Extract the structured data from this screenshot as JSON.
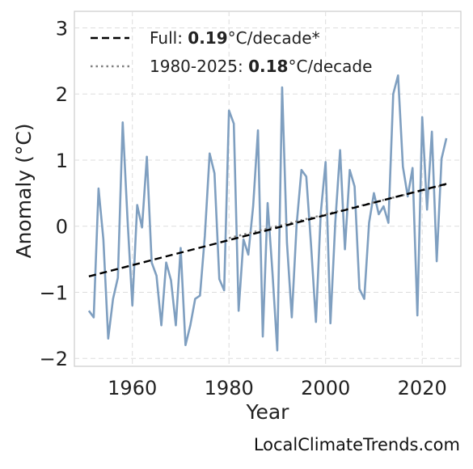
{
  "chart_data": {
    "type": "line",
    "xlabel": "Year",
    "ylabel": "Anomaly (°C)",
    "xlim": [
      1948,
      2028
    ],
    "ylim": [
      -2.12,
      3.25
    ],
    "xticks": [
      1960,
      1980,
      2000,
      2020
    ],
    "yticks": [
      -2,
      -1,
      0,
      1,
      2,
      3
    ],
    "ytick_labels": [
      "−2",
      "−1",
      "0",
      "1",
      "2",
      "3"
    ],
    "grid": true,
    "legend_position": "top-left",
    "series": [
      {
        "style": "solid",
        "color": "#7f9fc0",
        "x": [
          1951,
          1952,
          1953,
          1954,
          1955,
          1956,
          1957,
          1958,
          1959,
          1960,
          1961,
          1962,
          1963,
          1964,
          1965,
          1966,
          1967,
          1968,
          1969,
          1970,
          1971,
          1972,
          1973,
          1974,
          1975,
          1976,
          1977,
          1978,
          1979,
          1980,
          1981,
          1982,
          1983,
          1984,
          1985,
          1986,
          1987,
          1988,
          1989,
          1990,
          1991,
          1992,
          1993,
          1994,
          1995,
          1996,
          1997,
          1998,
          1999,
          2000,
          2001,
          2002,
          2003,
          2004,
          2005,
          2006,
          2007,
          2008,
          2009,
          2010,
          2011,
          2012,
          2013,
          2014,
          2015,
          2016,
          2017,
          2018,
          2019,
          2020,
          2021,
          2022,
          2023,
          2024,
          2025
        ],
        "y": [
          -1.28,
          -1.38,
          0.57,
          -0.2,
          -1.7,
          -1.1,
          -0.78,
          1.57,
          0.1,
          -1.2,
          0.32,
          -0.02,
          1.05,
          -0.55,
          -0.75,
          -1.5,
          -0.55,
          -0.82,
          -1.5,
          -0.33,
          -1.8,
          -1.5,
          -1.1,
          -1.05,
          -0.15,
          1.1,
          0.8,
          -0.8,
          -0.97,
          1.75,
          1.55,
          -1.28,
          -0.2,
          -0.43,
          0.3,
          1.45,
          -1.67,
          0.35,
          -0.7,
          -1.88,
          2.1,
          -0.25,
          -1.38,
          0.02,
          0.85,
          0.75,
          -0.3,
          -1.45,
          0.2,
          0.97,
          -1.47,
          0.05,
          1.15,
          -0.35,
          0.85,
          0.6,
          -0.95,
          -1.1,
          0.05,
          0.5,
          0.18,
          0.3,
          0.05,
          2.0,
          2.28,
          0.9,
          0.45,
          0.88,
          -1.35,
          1.65,
          0.25,
          1.43,
          -0.53,
          1.02,
          1.33
        ]
      },
      {
        "name": "Full: 0.19°C/decade*",
        "style": "dashed",
        "color": "#000000",
        "x": [
          1951,
          2025
        ],
        "y": [
          -0.76,
          0.64
        ]
      },
      {
        "name": "1980-2025: 0.18°C/decade",
        "style": "dotted",
        "color": "#808080",
        "x": [
          1980,
          2025
        ],
        "y": [
          -0.18,
          0.63
        ]
      }
    ]
  },
  "legend": {
    "full": {
      "prefix": "Full: ",
      "value": "0.19",
      "suffix": "°C/decade*"
    },
    "recent": {
      "prefix": "1980-2025: ",
      "value": "0.18",
      "suffix": "°C/decade"
    }
  },
  "credit": "LocalClimateTrends.com"
}
